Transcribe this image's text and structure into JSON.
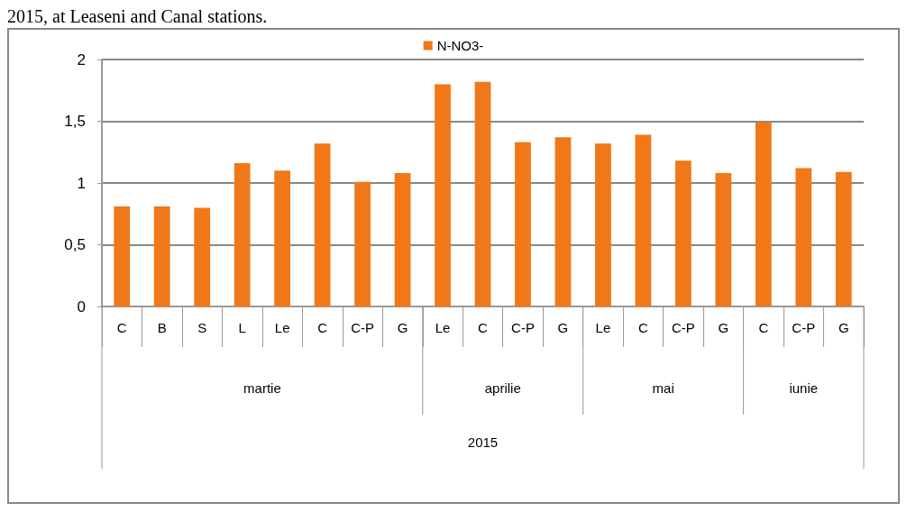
{
  "chart_data": {
    "type": "bar",
    "annotations": [
      "2015, at Leaseni and Canal stations.",
      "martie",
      "aprilie",
      "mai",
      "iunie",
      "2015"
    ],
    "categories": [
      "C",
      "B",
      "S",
      "L",
      "Le",
      "C",
      "C-P",
      "G",
      "Le",
      "C",
      "C-P",
      "G",
      "Le",
      "C",
      "C-P",
      "G",
      "C",
      "C-P",
      "G"
    ],
    "series": [
      {
        "name": "N-NO3-",
        "color": "#f07818",
        "values": [
          0.81,
          0.81,
          0.8,
          1.16,
          1.1,
          1.32,
          1.01,
          1.08,
          1.8,
          1.82,
          1.33,
          1.37,
          1.32,
          1.39,
          1.18,
          1.08,
          1.49,
          1.12,
          1.09
        ]
      }
    ],
    "ylim": [
      0,
      2
    ],
    "yticks": [
      0,
      {
        "value": 0.5,
        "label": "0,5"
      },
      1,
      {
        "value": 1.5,
        "label": "1,5"
      },
      2
    ],
    "grid": "y",
    "legend": "top"
  }
}
